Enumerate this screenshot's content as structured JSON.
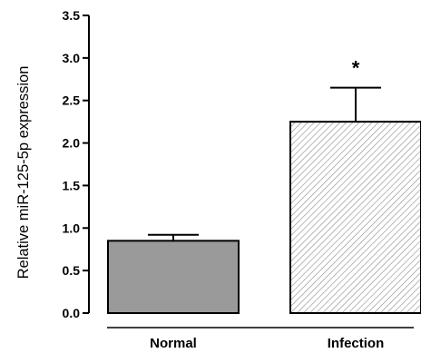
{
  "chart_data": {
    "type": "bar",
    "categories": [
      "Normal",
      "Infection"
    ],
    "values": [
      0.85,
      2.25
    ],
    "errors": [
      0.07,
      0.4
    ],
    "annotations": [
      "",
      "*"
    ],
    "xlabel": "",
    "ylabel": "Relative miR-125-5p expression",
    "ylim": [
      0,
      3.5
    ],
    "yticks": [
      "0.0",
      "0.5",
      "1.0",
      "1.5",
      "2.0",
      "2.5",
      "3.0",
      "3.5"
    ],
    "grid": false,
    "bar_styles": [
      {
        "fill": "#9a9a9a",
        "pattern": "solid"
      },
      {
        "fill": "#ffffff",
        "pattern": "diagonal-hatch"
      }
    ]
  }
}
